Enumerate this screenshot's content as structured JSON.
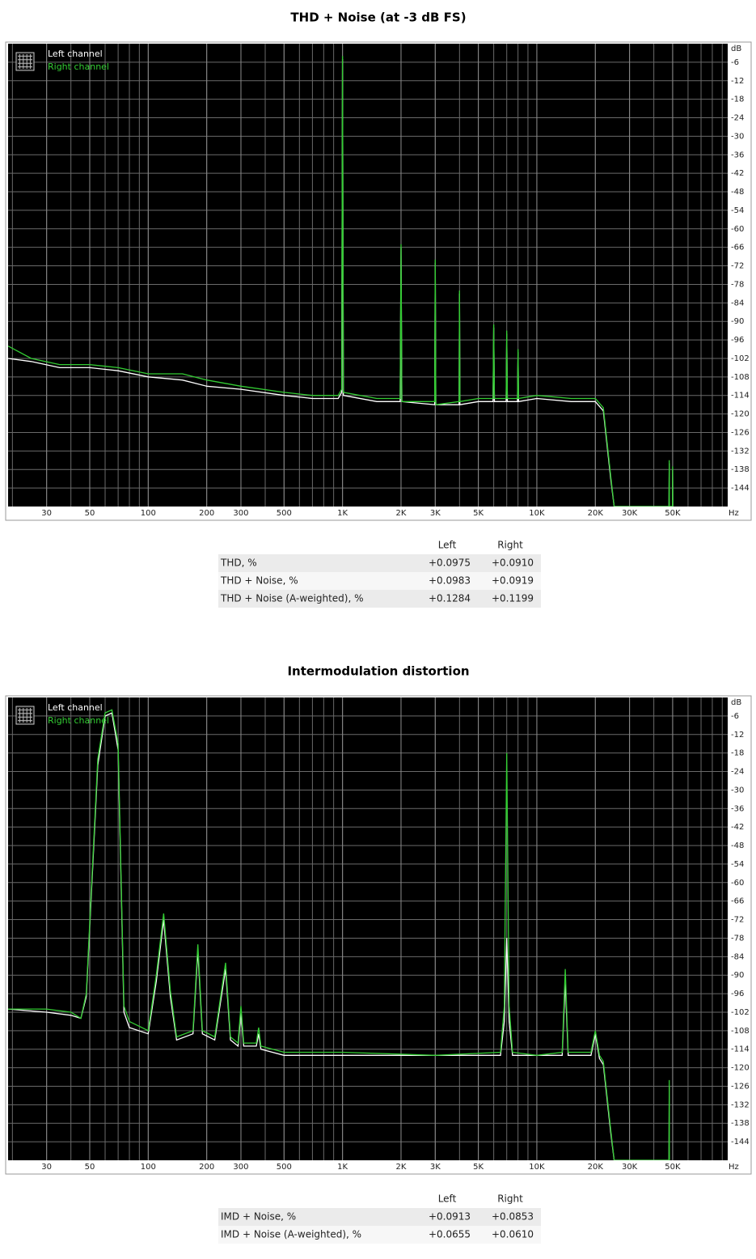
{
  "chart_data": [
    {
      "type": "line",
      "title": "THD + Noise (at -3 dB FS)",
      "xscale": "log",
      "grid": true,
      "legend": "upper left",
      "y_unit": "dB",
      "x_unit": "Hz",
      "xlim": [
        19,
        96000
      ],
      "ylim": [
        -150,
        0
      ],
      "xticks": [
        30,
        50,
        100,
        200,
        300,
        500,
        {
          "value": 1000,
          "label": "1K"
        },
        {
          "value": 2000,
          "label": "2K"
        },
        {
          "value": 3000,
          "label": "3K"
        },
        {
          "value": 5000,
          "label": "5K"
        },
        {
          "value": 10000,
          "label": "10K"
        },
        {
          "value": 20000,
          "label": "20K"
        },
        {
          "value": 30000,
          "label": "30K"
        },
        {
          "value": 50000,
          "label": "50K"
        }
      ],
      "yticks": [
        -6,
        -12,
        -18,
        -24,
        -30,
        -36,
        -42,
        -48,
        -54,
        -60,
        -66,
        -72,
        -78,
        -84,
        -90,
        -96,
        -102,
        -108,
        -114,
        -120,
        -126,
        -132,
        -138,
        -144
      ],
      "x": [
        19,
        25,
        35,
        50,
        70,
        100,
        150,
        200,
        300,
        500,
        700,
        950,
        990,
        1000,
        1010,
        1500,
        1980,
        2000,
        2020,
        2980,
        3000,
        3020,
        3980,
        4000,
        4020,
        5000,
        5950,
        6000,
        6050,
        6950,
        7000,
        7050,
        7950,
        8000,
        8050,
        10000,
        15000,
        20000,
        22000,
        24000,
        25000,
        47900,
        48000,
        48100,
        49900,
        50000,
        50100
      ],
      "series": [
        {
          "name": "Left channel",
          "color": "#ffffff",
          "values": [
            -102,
            -103,
            -105,
            -105,
            -106,
            -108,
            -109,
            -111,
            -112,
            -114,
            -115,
            -115,
            -113,
            -5,
            -114,
            -116,
            -116,
            -66,
            -116,
            -117,
            -71,
            -117,
            -117,
            -81,
            -117,
            -116,
            -116,
            -92,
            -116,
            -116,
            -94,
            -116,
            -116,
            -100,
            -116,
            -115,
            -116,
            -116,
            -119,
            -141,
            -150,
            -150,
            -136,
            -150,
            -150,
            -138,
            -150
          ]
        },
        {
          "name": "Right channel",
          "color": "#33cc33",
          "values": [
            -98,
            -102,
            -104,
            -104,
            -105,
            -107,
            -107,
            -109,
            -111,
            -113,
            -114,
            -114,
            -112,
            -4,
            -113,
            -115,
            -115,
            -65,
            -116,
            -116,
            -70,
            -117,
            -116,
            -80,
            -116,
            -115,
            -115,
            -91,
            -115,
            -115,
            -93,
            -115,
            -115,
            -99,
            -115,
            -114,
            -115,
            -115,
            -118,
            -140,
            -150,
            -150,
            -135,
            -150,
            -150,
            -137,
            -150
          ]
        }
      ]
    },
    {
      "type": "line",
      "title": "Intermodulation distortion",
      "xscale": "log",
      "grid": true,
      "legend": "upper left",
      "y_unit": "dB",
      "x_unit": "Hz",
      "xlim": [
        19,
        96000
      ],
      "ylim": [
        -150,
        0
      ],
      "xticks": [
        30,
        50,
        100,
        200,
        300,
        500,
        {
          "value": 1000,
          "label": "1K"
        },
        {
          "value": 2000,
          "label": "2K"
        },
        {
          "value": 3000,
          "label": "3K"
        },
        {
          "value": 5000,
          "label": "5K"
        },
        {
          "value": 10000,
          "label": "10K"
        },
        {
          "value": 20000,
          "label": "20K"
        },
        {
          "value": 30000,
          "label": "30K"
        },
        {
          "value": 50000,
          "label": "50K"
        }
      ],
      "yticks": [
        -6,
        -12,
        -18,
        -24,
        -30,
        -36,
        -42,
        -48,
        -54,
        -60,
        -66,
        -72,
        -78,
        -84,
        -90,
        -96,
        -102,
        -108,
        -114,
        -120,
        -126,
        -132,
        -138,
        -144
      ],
      "x": [
        19,
        30,
        40,
        45,
        48,
        55,
        60,
        65,
        70,
        75,
        80,
        100,
        110,
        120,
        130,
        140,
        170,
        180,
        190,
        220,
        250,
        265,
        290,
        300,
        310,
        360,
        370,
        380,
        500,
        1000,
        3000,
        6500,
        6800,
        7000,
        7200,
        7500,
        10000,
        13500,
        14000,
        14500,
        19000,
        20000,
        21000,
        22000,
        24000,
        25000,
        47900,
        48000,
        48100
      ],
      "series": [
        {
          "name": "Left channel",
          "color": "#ffffff",
          "values": [
            -101,
            -102,
            -103,
            -104,
            -97,
            -22,
            -6,
            -5,
            -17,
            -102,
            -107,
            -109,
            -92,
            -72,
            -97,
            -111,
            -109,
            -82,
            -109,
            -111,
            -88,
            -111,
            -113,
            -102,
            -113,
            -113,
            -109,
            -114,
            -116,
            -116,
            -116,
            -116,
            -105,
            -78,
            -105,
            -116,
            -116,
            -116,
            -92,
            -116,
            -116,
            -109,
            -117,
            -119,
            -141,
            -150,
            -150,
            -126,
            -150
          ]
        },
        {
          "name": "Right channel",
          "color": "#33cc33",
          "values": [
            -101,
            -101,
            -102,
            -104,
            -96,
            -20,
            -5,
            -4,
            -15,
            -100,
            -105,
            -108,
            -90,
            -70,
            -95,
            -110,
            -108,
            -80,
            -108,
            -110,
            -86,
            -110,
            -112,
            -100,
            -112,
            -112,
            -107,
            -113,
            -115,
            -115,
            -116,
            -115,
            -100,
            -18,
            -100,
            -115,
            -116,
            -115,
            -88,
            -115,
            -115,
            -108,
            -116,
            -118,
            -140,
            -150,
            -150,
            -124,
            -150
          ]
        }
      ]
    }
  ],
  "tables": [
    {
      "columns": [
        "Left",
        "Right"
      ],
      "rows": [
        [
          "THD, %",
          "+0.0975",
          "+0.0910"
        ],
        [
          "THD + Noise, %",
          "+0.0983",
          "+0.0919"
        ],
        [
          "THD + Noise (A-weighted), %",
          "+0.1284",
          "+0.1199"
        ]
      ]
    },
    {
      "columns": [
        "Left",
        "Right"
      ],
      "rows": [
        [
          "IMD + Noise, %",
          "+0.0913",
          "+0.0853"
        ],
        [
          "IMD + Noise (A-weighted), %",
          "+0.0655",
          "+0.0610"
        ]
      ]
    }
  ]
}
